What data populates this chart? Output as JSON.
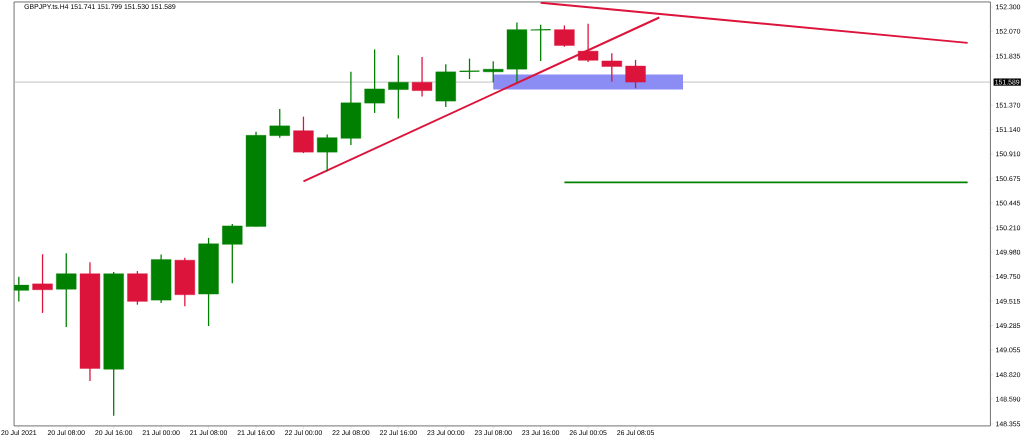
{
  "chart_data": {
    "type": "candlestick",
    "title": "GBPJPY.ts.H4  151.741 151.799 151.530 151.589",
    "categories": [
      "20 Jul 2021",
      null,
      "20 Jul 08:00",
      null,
      "20 Jul 16:00",
      null,
      "21 Jul 00:00",
      null,
      "21 Jul 08:00",
      null,
      "21 Jul 16:00",
      null,
      "22 Jul 00:00",
      null,
      "22 Jul 08:00",
      null,
      "22 Jul 16:00",
      null,
      "23 Jul 00:00",
      null,
      "23 Jul 08:00",
      null,
      "23 Jul 16:00",
      null,
      "26 Jul 00:05",
      null,
      "26 Jul 08:05",
      null,
      null,
      null,
      null,
      null,
      null,
      null,
      null,
      null,
      null,
      null,
      null,
      null,
      null
    ],
    "ohlc": [
      [
        149.617,
        149.748,
        149.514,
        149.67
      ],
      [
        149.68,
        149.96,
        149.405,
        149.624
      ],
      [
        149.629,
        149.97,
        149.271,
        149.776
      ],
      [
        149.776,
        149.885,
        148.76,
        148.879
      ],
      [
        148.872,
        149.792,
        148.433,
        149.776
      ],
      [
        149.776,
        149.801,
        149.483,
        149.514
      ],
      [
        149.526,
        149.957,
        149.498,
        149.91
      ],
      [
        149.904,
        149.926,
        149.468,
        149.577
      ],
      [
        149.583,
        150.115,
        149.281,
        150.059
      ],
      [
        150.054,
        150.246,
        149.685,
        150.228
      ],
      [
        150.222,
        151.119,
        150.222,
        151.085
      ],
      [
        151.082,
        151.334,
        151.063,
        151.175
      ],
      [
        151.129,
        151.262,
        150.917,
        150.926
      ],
      [
        150.926,
        151.094,
        150.745,
        151.063
      ],
      [
        151.057,
        151.686,
        150.994,
        151.393
      ],
      [
        151.39,
        151.898,
        151.297,
        151.524
      ],
      [
        151.518,
        151.842,
        151.244,
        151.587
      ],
      [
        151.587,
        151.826,
        151.452,
        151.508
      ],
      [
        151.409,
        151.758,
        151.353,
        151.686
      ],
      [
        151.69,
        151.811,
        151.618,
        151.692
      ],
      [
        151.686,
        151.786,
        151.587,
        151.711
      ],
      [
        151.711,
        152.153,
        151.587,
        152.085
      ],
      [
        152.082,
        152.132,
        151.789,
        152.085
      ],
      [
        152.085,
        152.125,
        151.923,
        151.935
      ],
      [
        151.882,
        152.141,
        151.779,
        151.795
      ],
      [
        151.789,
        151.861,
        151.592,
        151.736
      ],
      [
        151.741,
        151.799,
        151.53,
        151.589
      ],
      null,
      null,
      null,
      null,
      null,
      null,
      null,
      null,
      null,
      null,
      null,
      null,
      null,
      null
    ],
    "colors": [
      "#008000",
      "#dc143c",
      "#008000",
      "#dc143c",
      "#008000",
      "#dc143c",
      "#008000",
      "#dc143c",
      "#008000",
      "#008000",
      "#008000",
      "#008000",
      "#dc143c",
      "#008000",
      "#008000",
      "#008000",
      "#008000",
      "#dc143c",
      "#008000",
      "#008000",
      "#008000",
      "#008000",
      "#008000",
      "#dc143c",
      "#dc143c",
      "#dc143c",
      "#dc143c",
      null,
      null,
      null,
      null,
      null,
      null,
      null,
      null,
      null,
      null,
      null,
      null,
      null,
      null
    ],
    "series": [
      {
        "type": "line",
        "color": "#8c8cf5",
        "values": [
          null,
          null,
          null,
          null,
          null,
          null,
          null,
          null,
          null,
          null,
          null,
          null,
          null,
          null,
          null,
          null,
          null,
          null,
          null,
          null,
          null,
          null,
          null,
          null,
          null,
          null,
          null,
          null,
          null,
          null,
          null,
          null,
          null,
          null,
          null,
          null,
          null,
          null,
          null,
          null,
          null
        ],
        "upper": [
          null,
          null,
          null,
          null,
          null,
          null,
          null,
          null,
          null,
          null,
          null,
          null,
          null,
          null,
          null,
          null,
          null,
          null,
          null,
          null,
          151.66,
          null,
          null,
          null,
          null,
          null,
          null,
          null,
          151.66,
          null,
          null,
          null,
          null,
          null,
          null,
          null,
          null,
          null,
          null,
          null,
          null
        ],
        "lower": [
          null,
          null,
          null,
          null,
          null,
          null,
          null,
          null,
          null,
          null,
          null,
          null,
          null,
          null,
          null,
          null,
          null,
          null,
          null,
          null,
          151.52,
          null,
          null,
          null,
          null,
          null,
          null,
          null,
          151.52,
          null,
          null,
          null,
          null,
          null,
          null,
          null,
          null,
          null,
          null,
          null,
          null
        ]
      },
      {
        "type": "line",
        "color": "#dc143c",
        "values": [
          null,
          null,
          null,
          null,
          null,
          null,
          null,
          null,
          null,
          null,
          null,
          null,
          150.65,
          null,
          null,
          null,
          null,
          null,
          null,
          null,
          null,
          null,
          null,
          null,
          null,
          null,
          null,
          152.2,
          null,
          null,
          null,
          null,
          null,
          null,
          null,
          null,
          null,
          null,
          null,
          null,
          null
        ]
      },
      {
        "type": "line",
        "color": "#dc143c",
        "values": [
          null,
          null,
          null,
          null,
          null,
          null,
          null,
          null,
          null,
          null,
          null,
          null,
          null,
          null,
          null,
          null,
          null,
          null,
          null,
          null,
          null,
          null,
          152.34,
          null,
          null,
          null,
          null,
          null,
          null,
          null,
          null,
          null,
          null,
          null,
          null,
          null,
          null,
          null,
          null,
          null,
          151.96
        ]
      },
      {
        "type": "line",
        "color": "#008000",
        "values": [
          null,
          null,
          null,
          null,
          null,
          null,
          null,
          null,
          null,
          null,
          null,
          null,
          null,
          null,
          null,
          null,
          null,
          null,
          null,
          null,
          null,
          null,
          null,
          150.64,
          null,
          null,
          null,
          null,
          null,
          null,
          null,
          null,
          null,
          null,
          null,
          null,
          null,
          null,
          null,
          null,
          150.64
        ]
      }
    ],
    "ref_lines": [
      {
        "axis": "y",
        "value": 151.589,
        "label": "151.589",
        "color": "#c0c0c0"
      }
    ],
    "ylim": [
      148.336,
      152.347
    ],
    "yticks": [
      {
        "value": 152.3,
        "label": "152.300"
      },
      {
        "value": 152.07,
        "label": "152.070"
      },
      {
        "value": 151.835,
        "label": "151.835"
      },
      {
        "value": 151.37,
        "label": "151.370"
      },
      {
        "value": 151.14,
        "label": "151.140"
      },
      {
        "value": 150.91,
        "label": "150.910"
      },
      {
        "value": 150.675,
        "label": "150.675"
      },
      {
        "value": 150.445,
        "label": "150.445"
      },
      {
        "value": 150.21,
        "label": "150.210"
      },
      {
        "value": 149.98,
        "label": "149.980"
      },
      {
        "value": 149.75,
        "label": "149.750"
      },
      {
        "value": 149.515,
        "label": "149.515"
      },
      {
        "value": 149.285,
        "label": "149.285"
      },
      {
        "value": 149.055,
        "label": "149.055"
      },
      {
        "value": 148.82,
        "label": "148.820"
      },
      {
        "value": 148.59,
        "label": "148.590"
      },
      {
        "value": 148.355,
        "label": "148.355"
      }
    ],
    "grid": false
  }
}
